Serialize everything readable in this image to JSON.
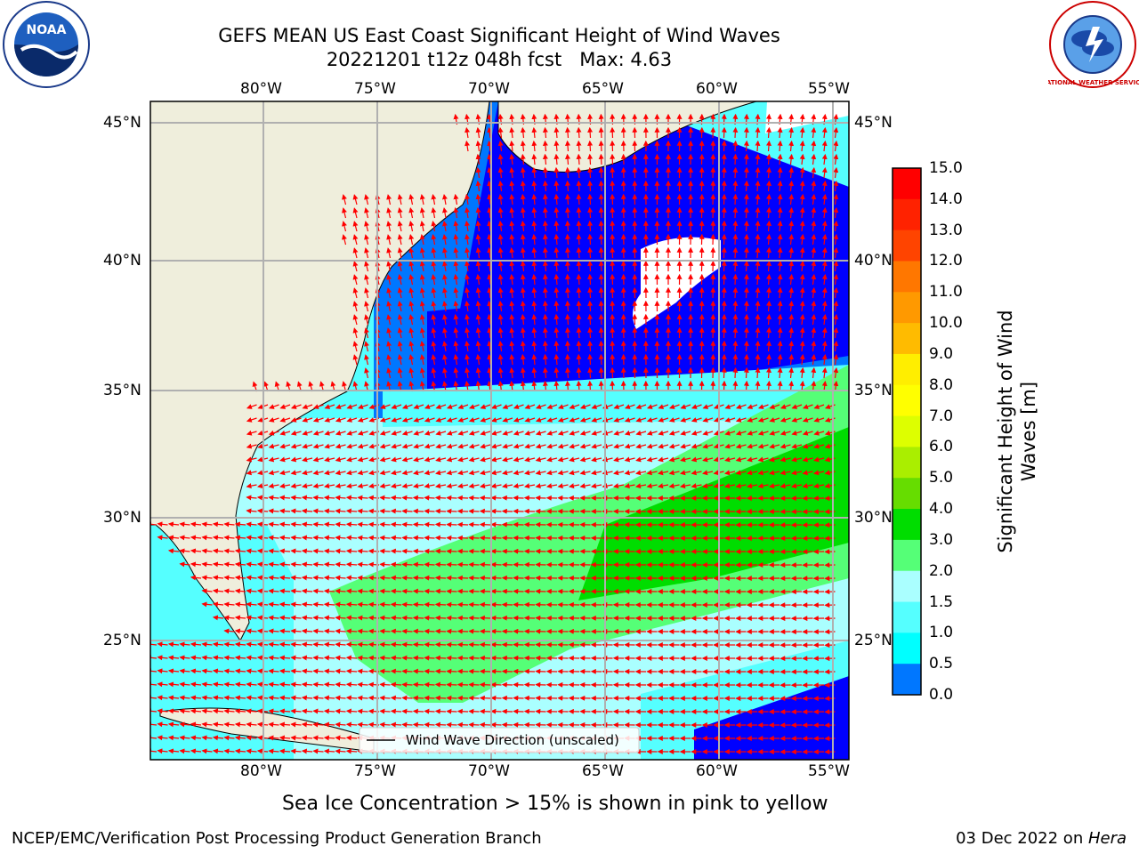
{
  "title": {
    "line1": "GEFS MEAN US East Coast Significant Height of Wind Waves",
    "line2": "20221201 t12z 048h fcst   Max: 4.63"
  },
  "logos": {
    "left": {
      "icon": "noaa-logo",
      "text": "NOAA"
    },
    "right": {
      "icon": "national-weather-service-logo",
      "text": "NATIONAL WEATHER SERVICE"
    }
  },
  "map": {
    "lon_labels": [
      "80°W",
      "75°W",
      "70°W",
      "65°W",
      "60°W",
      "55°W"
    ],
    "lat_labels": [
      "45°N",
      "40°N",
      "35°N",
      "30°N",
      "25°N"
    ],
    "lon_range": [
      -85,
      -54.5
    ],
    "lat_range": [
      20.5,
      46
    ],
    "legend_label": "Wind Wave Direction (unscaled)",
    "arrow_color": "#ff0000",
    "land_color": "#efeedc",
    "ice_color": "#ffffff"
  },
  "colorbar": {
    "title_line1": "Significant Height of Wind",
    "title_line2": "Waves [m]",
    "ticks": [
      "15.0",
      "14.0",
      "13.0",
      "12.0",
      "11.0",
      "10.0",
      "9.0",
      "8.0",
      "7.0",
      "6.0",
      "5.0",
      "4.0",
      "3.0",
      "2.0",
      "1.5",
      "1.0",
      "0.5",
      "0.0"
    ],
    "colors_top_to_bottom": [
      "#ff0000",
      "#ff2200",
      "#ff4400",
      "#ff7700",
      "#ff9900",
      "#ffbb00",
      "#ffee00",
      "#ffff00",
      "#ddff00",
      "#aaee00",
      "#66dd00",
      "#00dd00",
      "#55ff77",
      "#aaffff",
      "#55ffff",
      "#00ffff",
      "#0077ff",
      "#0000ff"
    ]
  },
  "caption": "Sea Ice Concentration > 15% is shown in pink to yellow",
  "footer": {
    "left": "NCEP/EMC/Verification Post Processing Product Generation Branch",
    "right_date": "03 Dec 2022 on ",
    "right_host": "Hera"
  }
}
